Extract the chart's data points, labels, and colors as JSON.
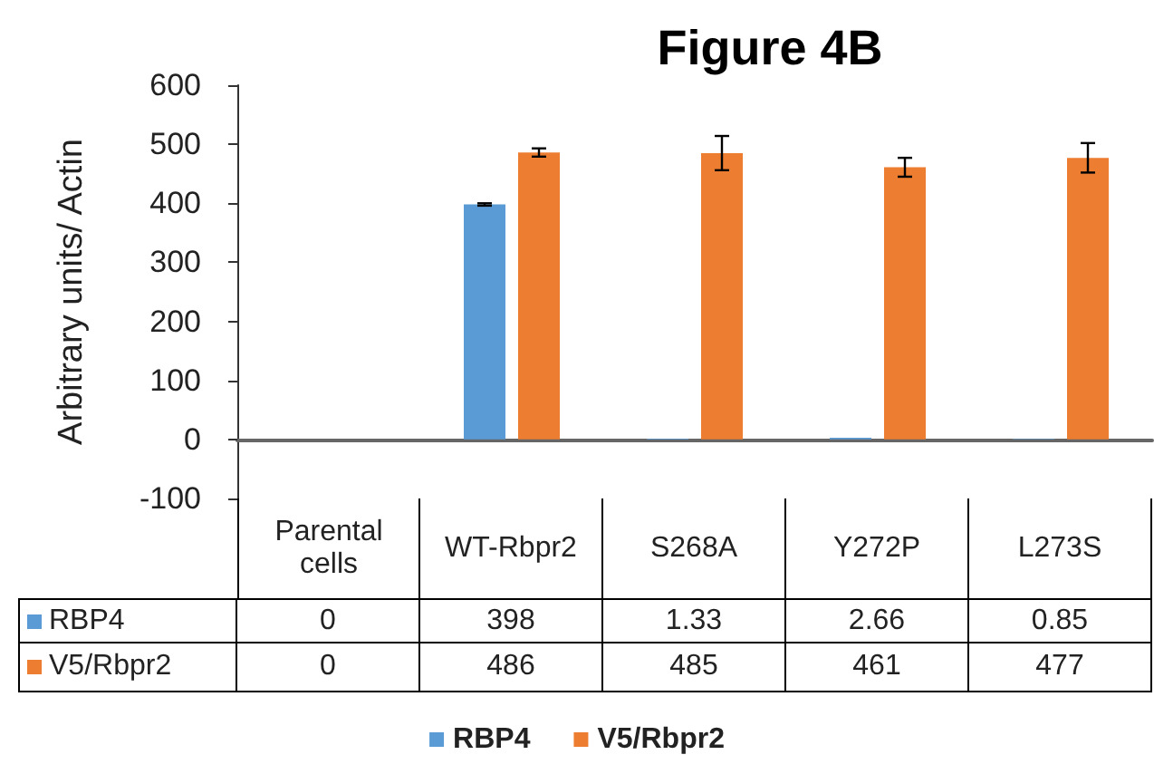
{
  "chart_data": {
    "type": "bar",
    "title": "Figure 4B",
    "ylabel": "Arbitrary units/ Actin",
    "categories": [
      "Parental cells",
      "WT-Rbpr2",
      "S268A",
      "Y272P",
      "L273S"
    ],
    "series": [
      {
        "name": "RBP4",
        "color": "#5b9bd5",
        "values": [
          0,
          398,
          1.33,
          2.66,
          0.85
        ],
        "errors": [
          null,
          2,
          null,
          null,
          null
        ]
      },
      {
        "name": "V5/Rbpr2",
        "color": "#ed7d31",
        "values": [
          0,
          486,
          485,
          461,
          477
        ],
        "errors": [
          null,
          7,
          29,
          16,
          25
        ]
      }
    ],
    "ylim": [
      -100,
      600
    ],
    "yticks": [
      -100,
      0,
      100,
      200,
      300,
      400,
      500,
      600
    ],
    "grid": false,
    "legend": "bottom",
    "data_labels": true
  }
}
